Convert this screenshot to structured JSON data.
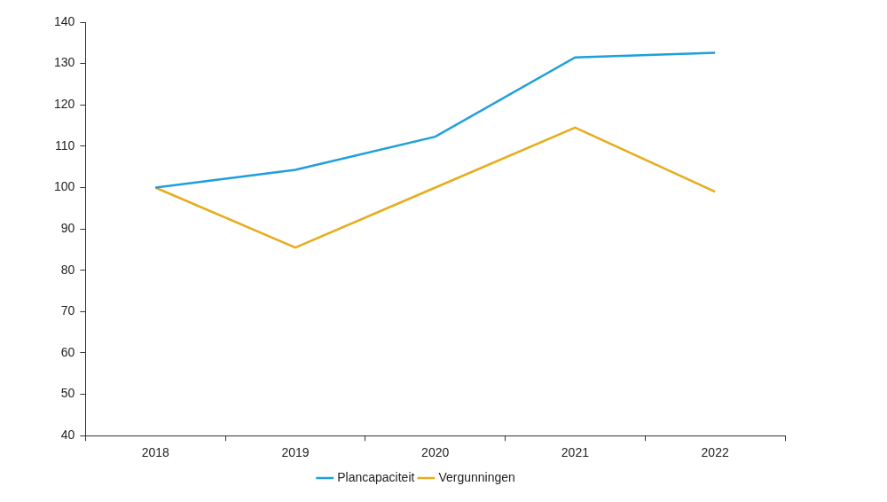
{
  "chart_data": {
    "type": "line",
    "categories": [
      "2018",
      "2019",
      "2020",
      "2021",
      "2022"
    ],
    "series": [
      {
        "name": "Plancapaciteit",
        "color": "#1e9fdb",
        "values": [
          100,
          104.3,
          112.3,
          131.5,
          132.6
        ]
      },
      {
        "name": "Vergunningen",
        "color": "#e6ad1c",
        "values": [
          100,
          85.5,
          100,
          114.5,
          99
        ]
      }
    ],
    "ylim": [
      40,
      140
    ],
    "yticks": [
      40,
      50,
      60,
      70,
      80,
      90,
      100,
      110,
      120,
      130,
      140
    ],
    "grid": false,
    "legend": "bottom"
  }
}
